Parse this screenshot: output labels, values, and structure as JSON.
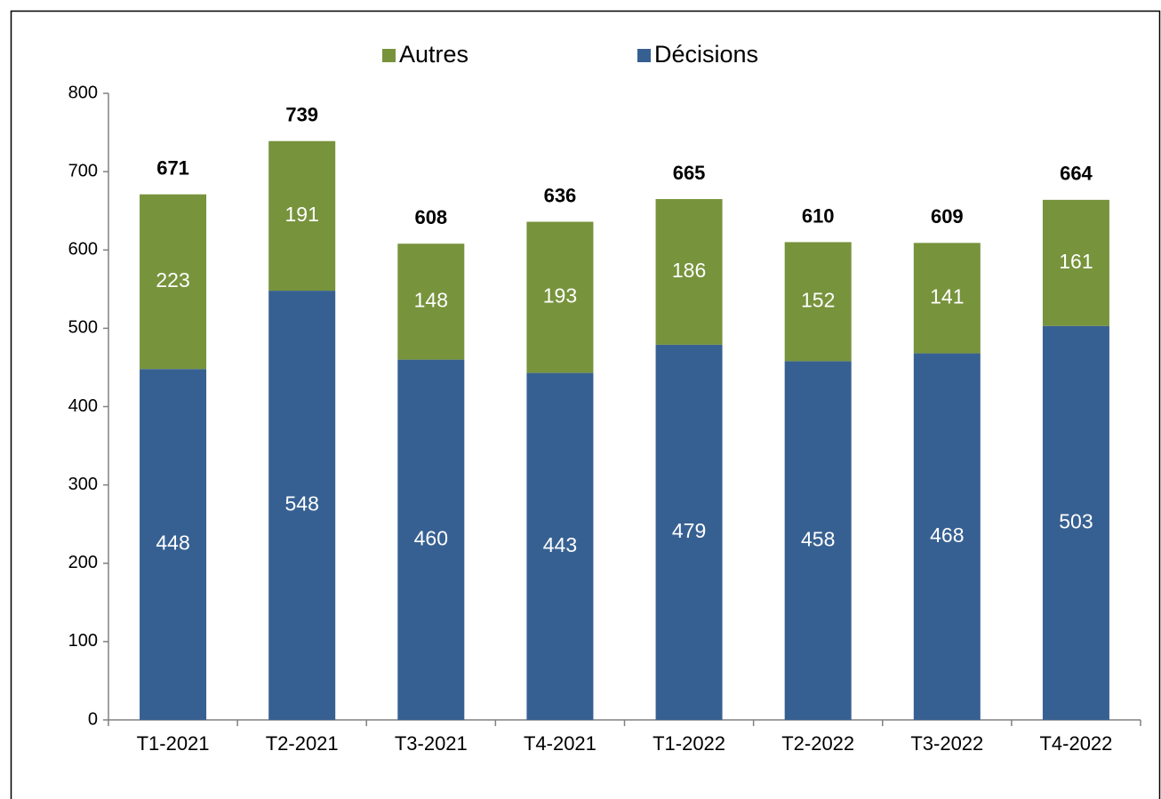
{
  "chart_data": {
    "type": "stacked_bar",
    "categories": [
      "T1-2021",
      "T2-2021",
      "T3-2021",
      "T4-2021",
      "T1-2022",
      "T2-2022",
      "T3-2022",
      "T4-2022"
    ],
    "series": [
      {
        "name": "Autres",
        "color": "#77933c",
        "values": [
          223,
          191,
          148,
          193,
          186,
          152,
          141,
          161
        ]
      },
      {
        "name": "Décisions",
        "color": "#376092",
        "values": [
          448,
          548,
          460,
          443,
          479,
          458,
          468,
          503
        ]
      }
    ],
    "totals": [
      671,
      739,
      608,
      636,
      665,
      610,
      609,
      664
    ],
    "ylim": [
      0,
      800
    ],
    "yticks": [
      0,
      100,
      200,
      300,
      400,
      500,
      600,
      700,
      800
    ],
    "legend": "top"
  }
}
